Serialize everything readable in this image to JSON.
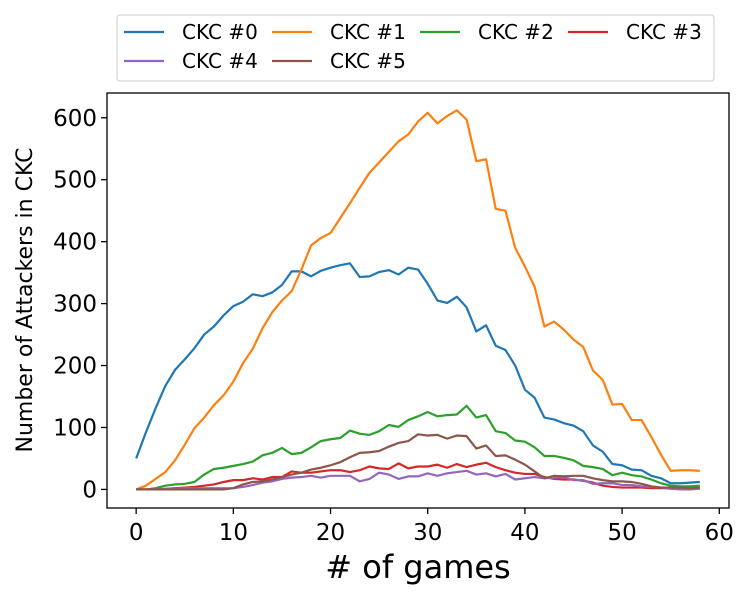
{
  "chart_data": {
    "type": "line",
    "xlabel": "# of games",
    "ylabel": "Number of Attackers in CKC",
    "xlim": [
      -3,
      61
    ],
    "ylim": [
      -30,
      640
    ],
    "xticks": [
      0,
      10,
      20,
      30,
      40,
      50,
      60
    ],
    "yticks": [
      0,
      100,
      200,
      300,
      400,
      500,
      600
    ],
    "legend_position": "top",
    "grid": false,
    "x": [
      0,
      1,
      2,
      3,
      4,
      5,
      6,
      7,
      8,
      9,
      10,
      11,
      12,
      13,
      14,
      15,
      16,
      17,
      18,
      19,
      20,
      21,
      22,
      23,
      24,
      25,
      26,
      27,
      28,
      29,
      30,
      31,
      32,
      33,
      34,
      35,
      36,
      37,
      38,
      39,
      40,
      41,
      42,
      43,
      44,
      45,
      46,
      47,
      48,
      49,
      50,
      51,
      52,
      53,
      54,
      55,
      56,
      57,
      58
    ],
    "series": [
      {
        "name": "CKC #0",
        "color": "#1f77b4",
        "values": [
          50,
          92,
          131,
          167,
          193,
          210,
          228,
          250,
          263,
          281,
          296,
          303,
          315,
          312,
          318,
          330,
          352,
          352,
          344,
          353,
          358,
          362,
          365,
          343,
          344,
          351,
          354,
          347,
          358,
          355,
          332,
          305,
          301,
          311,
          294,
          255,
          265,
          232,
          225,
          200,
          161,
          148,
          116,
          113,
          107,
          103,
          94,
          71,
          61,
          41,
          39,
          32,
          31,
          22,
          18,
          10,
          10,
          11,
          12
        ]
      },
      {
        "name": "CKC #1",
        "color": "#ff7f0e",
        "values": [
          0,
          6,
          17,
          28,
          47,
          72,
          99,
          116,
          136,
          152,
          174,
          204,
          227,
          260,
          286,
          305,
          320,
          355,
          394,
          406,
          414,
          438,
          462,
          487,
          511,
          528,
          545,
          562,
          573,
          594,
          608,
          591,
          603,
          612,
          597,
          530,
          533,
          453,
          450,
          390,
          360,
          327,
          263,
          271,
          258,
          242,
          230,
          192,
          177,
          137,
          138,
          112,
          112,
          85,
          56,
          30,
          31,
          31,
          30
        ]
      },
      {
        "name": "CKC #2",
        "color": "#2ca02c",
        "values": [
          0,
          0,
          2,
          6,
          8,
          9,
          12,
          24,
          33,
          35,
          38,
          41,
          45,
          55,
          59,
          67,
          57,
          59,
          68,
          78,
          81,
          83,
          95,
          90,
          88,
          94,
          104,
          101,
          112,
          118,
          125,
          118,
          120,
          121,
          135,
          116,
          120,
          94,
          91,
          79,
          77,
          68,
          54,
          54,
          51,
          47,
          38,
          36,
          33,
          23,
          27,
          23,
          21,
          16,
          10,
          6,
          5,
          5,
          6
        ]
      },
      {
        "name": "CKC #3",
        "color": "#d62728",
        "values": [
          0,
          0,
          0,
          1,
          2,
          3,
          4,
          6,
          8,
          12,
          15,
          15,
          18,
          16,
          20,
          20,
          29,
          27,
          27,
          29,
          31,
          31,
          28,
          31,
          37,
          34,
          33,
          42,
          34,
          37,
          37,
          40,
          35,
          41,
          36,
          40,
          43,
          36,
          31,
          27,
          25,
          25,
          20,
          17,
          16,
          16,
          14,
          11,
          6,
          4,
          3,
          3,
          3,
          2,
          2,
          2,
          2,
          2,
          2
        ]
      },
      {
        "name": "CKC #4",
        "color": "#9467bd",
        "values": [
          0,
          0,
          0,
          1,
          1,
          2,
          2,
          2,
          2,
          2,
          2,
          4,
          7,
          11,
          13,
          17,
          19,
          20,
          22,
          19,
          22,
          22,
          22,
          13,
          17,
          27,
          24,
          17,
          21,
          21,
          26,
          22,
          26,
          28,
          30,
          24,
          26,
          21,
          25,
          16,
          18,
          20,
          18,
          19,
          20,
          15,
          15,
          9,
          10,
          10,
          7,
          7,
          5,
          4,
          3,
          1,
          0,
          0,
          1
        ]
      },
      {
        "name": "CKC #5",
        "color": "#8c564b",
        "values": [
          0,
          0,
          0,
          0,
          0,
          0,
          0,
          0,
          0,
          0,
          2,
          8,
          12,
          13,
          16,
          20,
          24,
          27,
          32,
          35,
          39,
          44,
          52,
          59,
          60,
          62,
          69,
          75,
          78,
          89,
          87,
          88,
          82,
          87,
          86,
          66,
          71,
          54,
          55,
          48,
          40,
          29,
          18,
          22,
          21,
          22,
          22,
          18,
          15,
          13,
          13,
          12,
          9,
          5,
          3,
          3,
          3,
          2,
          3
        ]
      }
    ]
  }
}
